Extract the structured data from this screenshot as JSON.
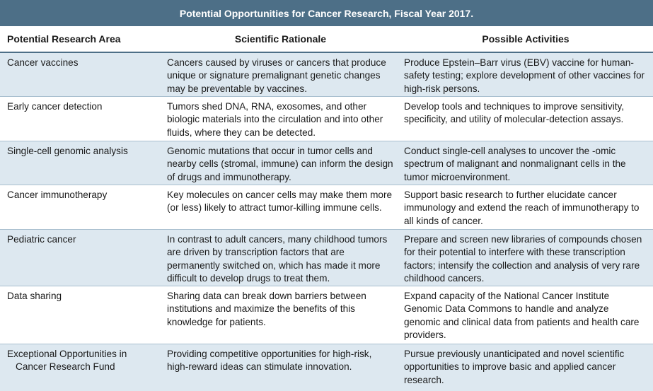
{
  "table": {
    "title": "Potential Opportunities for Cancer Research, Fiscal Year 2017.",
    "headers": [
      "Potential Research Area",
      "Scientific Rationale",
      "Possible Activities"
    ],
    "rows": [
      {
        "area": "Cancer vaccines",
        "rationale": "Cancers caused by viruses or cancers that produce unique or signature premalignant genetic changes may be preventable by vaccines.",
        "activities": "Produce Epstein–Barr virus (EBV) vaccine for human-safety testing; explore development of other vaccines for high-risk persons."
      },
      {
        "area": "Early cancer detection",
        "rationale": "Tumors shed DNA, RNA, exosomes, and other biologic materials into the circulation and into other fluids, where they can be detected.",
        "activities": "Develop tools and techniques to improve sensitivity, specificity, and utility of molecular-detection assays."
      },
      {
        "area": "Single-cell genomic analysis",
        "rationale": "Genomic mutations that occur in tumor cells and nearby cells (stromal, immune) can inform the design of drugs and immunotherapy.",
        "activities": "Conduct single-cell analyses to uncover the -omic spectrum of malignant and nonmalignant cells in the tumor microenvironment."
      },
      {
        "area": "Cancer immunotherapy",
        "rationale": "Key molecules on cancer cells may make them more (or less) likely to attract tumor-killing immune cells.",
        "activities": "Support basic research to further elucidate cancer immunology and extend the reach of immunotherapy to all kinds of cancer."
      },
      {
        "area": "Pediatric cancer",
        "rationale": "In contrast to adult cancers, many childhood tumors are driven by transcription factors that are permanently switched on, which has made it more difficult to develop drugs to treat them.",
        "activities": "Prepare and screen new libraries of compounds chosen for their potential to interfere with these transcription factors; intensify the collection and analysis of very rare childhood cancers."
      },
      {
        "area": "Data sharing",
        "rationale": "Sharing data can break down barriers between institutions and maximize the benefits of this knowledge for patients.",
        "activities": "Expand capacity of the National Cancer Institute Genomic Data Commons to handle and analyze genomic and clinical data from patients and health care providers."
      },
      {
        "area": "Exceptional Opportunities in Cancer Research Fund",
        "rationale": "Providing competitive opportunities for high-risk, high-reward ideas can stimulate innovation.",
        "activities": "Pursue previously unanticipated and novel scientific opportunities to improve basic and applied cancer research."
      }
    ]
  },
  "colors": {
    "title_bar": "#4d6f87",
    "alt_row": "#dde8f0",
    "rule": "#a9bfcf"
  }
}
